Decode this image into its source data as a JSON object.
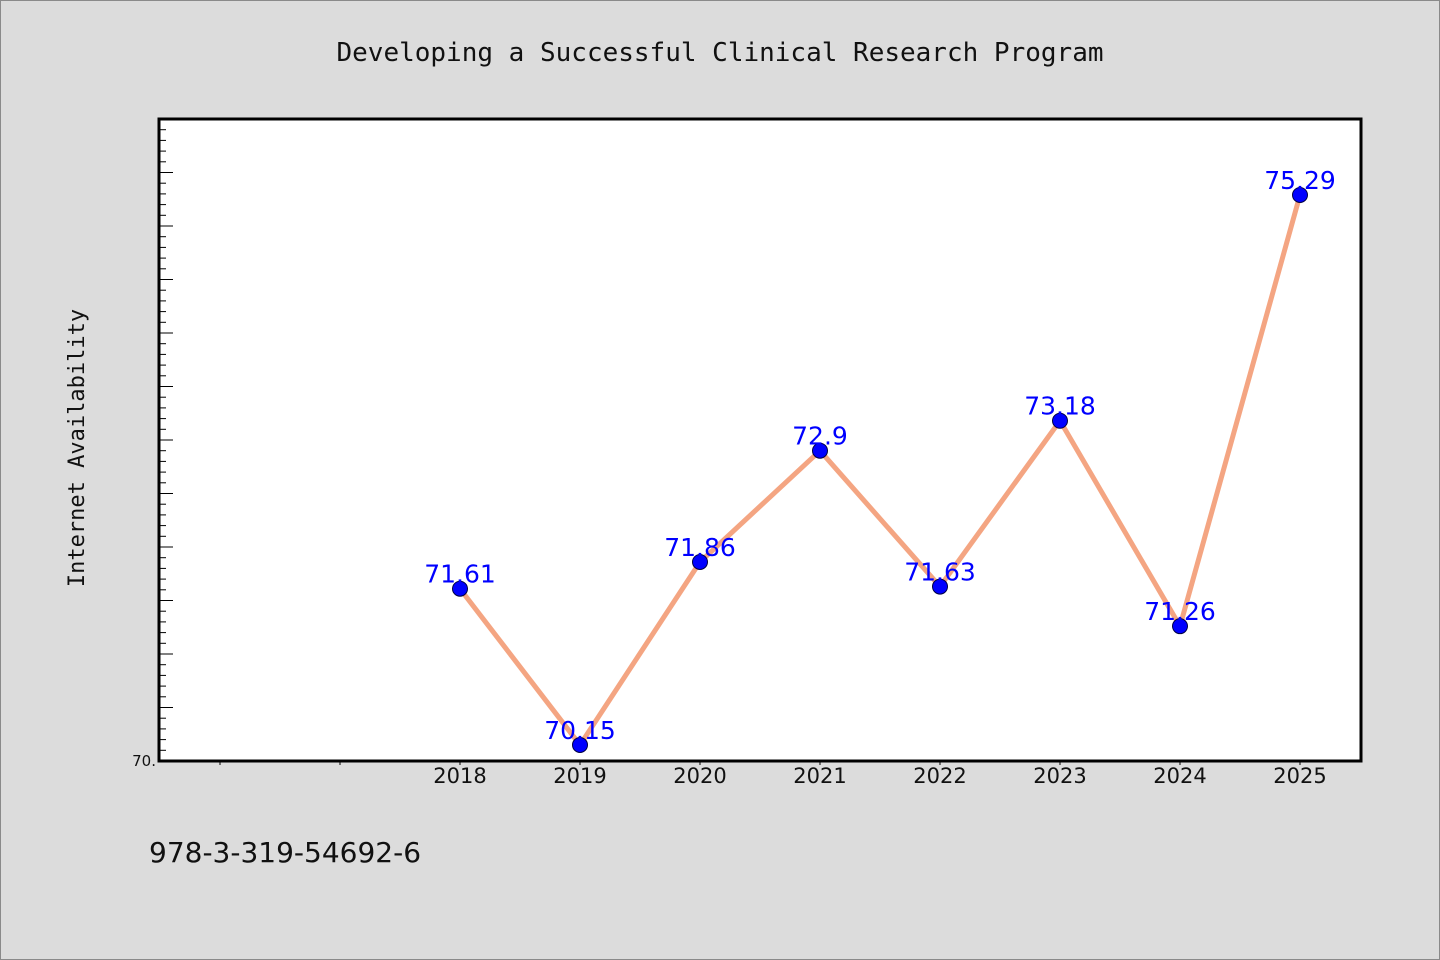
{
  "chart_data": {
    "type": "line",
    "title": "Developing a Successful Clinical Research Program",
    "xlabel": "",
    "ylabel": "Internet Availability",
    "categories": [
      "2018",
      "2019",
      "2020",
      "2021",
      "2022",
      "2023",
      "2024",
      "2025"
    ],
    "series": [
      {
        "values": [
          71.61,
          70.15,
          71.86,
          72.9,
          71.63,
          73.18,
          71.26,
          75.29
        ],
        "data_labels": [
          "71.61",
          "70.15",
          "71.86",
          "72.9",
          "71.63",
          "73.18",
          "71.26",
          "75.29"
        ]
      }
    ],
    "ylim": [
      70,
      76
    ],
    "y_min_label": "70.",
    "grid": false,
    "legend": "none"
  },
  "footer": {
    "text": "978-3-319-54692-6"
  },
  "colors": {
    "background": "#dcdcdc",
    "plot_background": "#ffffff",
    "line": "#f4a582",
    "marker": "#0000ff",
    "data_label": "#0000ff",
    "axis": "#000000"
  }
}
